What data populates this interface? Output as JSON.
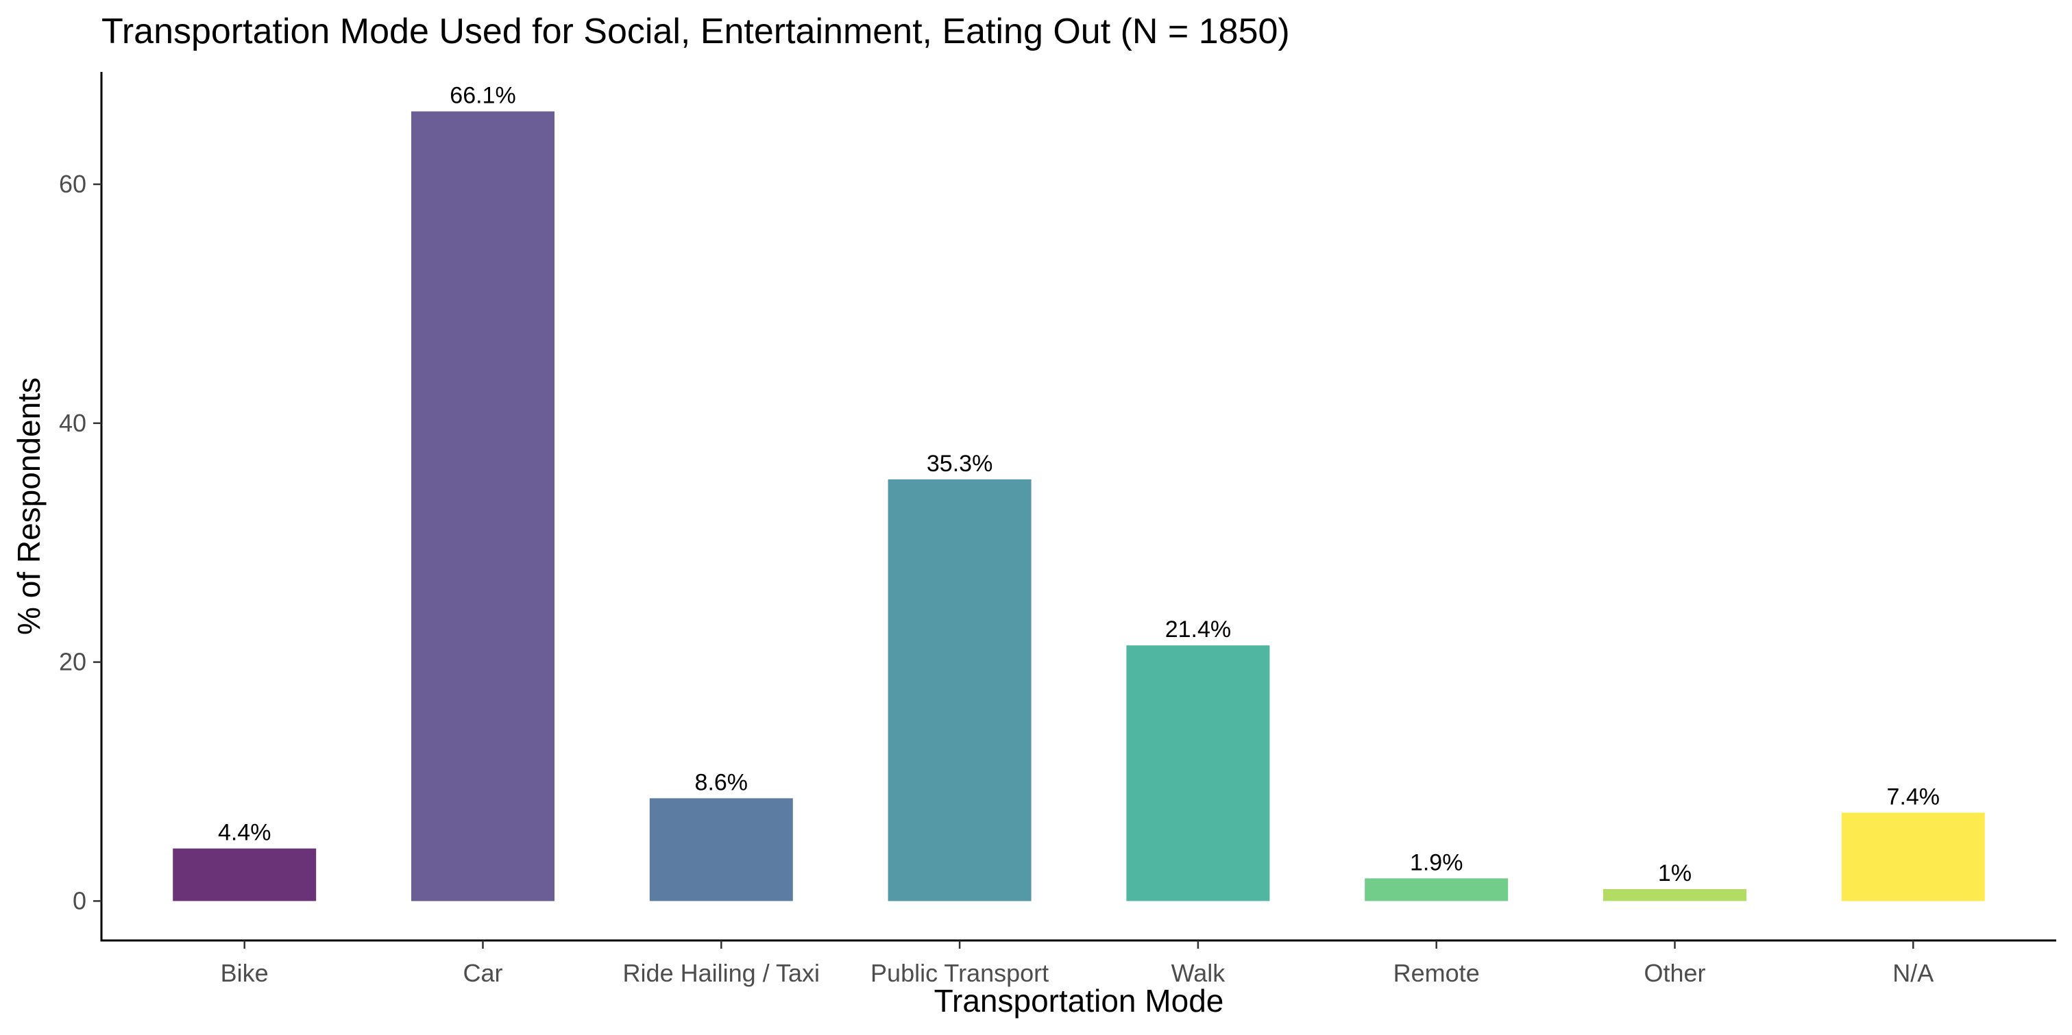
{
  "chart_data": {
    "type": "bar",
    "title": "Transportation Mode Used for Social, Entertainment, Eating Out (N = 1850)",
    "xlabel": "Transportation Mode",
    "ylabel": "% of Respondents",
    "categories": [
      "Bike",
      "Car",
      "Ride Hailing / Taxi",
      "Public Transport",
      "Walk",
      "Remote",
      "Other",
      "N/A"
    ],
    "values": [
      4.4,
      66.1,
      8.6,
      35.3,
      21.4,
      1.9,
      1.0,
      7.4
    ],
    "value_labels": [
      "4.4%",
      "66.1%",
      "8.6%",
      "35.3%",
      "21.4%",
      "1.9%",
      "1%",
      "7.4%"
    ],
    "colors": [
      "#6b3377",
      "#6b5d96",
      "#5d7ca2",
      "#5499a5",
      "#50b6a1",
      "#72cd8b",
      "#b2dc63",
      "#fdea4f"
    ],
    "yticks": [
      0,
      20,
      40,
      60
    ],
    "ytick_labels": [
      "0",
      "20",
      "40",
      "60"
    ],
    "ylim": [
      -3.3,
      69.4
    ],
    "grid": false,
    "legend": "none"
  }
}
